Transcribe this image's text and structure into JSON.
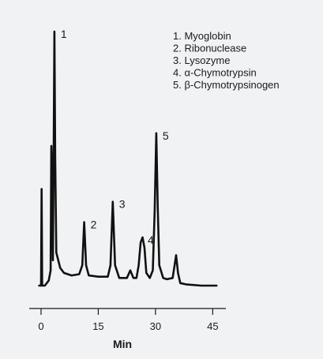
{
  "chart_data": {
    "type": "line",
    "title": "",
    "xlabel": "Min",
    "ylabel": "",
    "xlim": [
      -5,
      48
    ],
    "ylim": [
      0,
      1.0
    ],
    "x_ticks": [
      0,
      15,
      30,
      45
    ],
    "grid": false,
    "legend_position": "top-right",
    "series": [
      {
        "color": "#111111",
        "points": [
          [
            -0.5,
            0.0
          ],
          [
            0.0,
            0.0
          ],
          [
            0.15,
            0.38
          ],
          [
            0.3,
            0.0
          ],
          [
            1.0,
            0.0
          ],
          [
            2.0,
            0.02
          ],
          [
            2.5,
            0.06
          ],
          [
            2.7,
            0.55
          ],
          [
            2.9,
            0.45
          ],
          [
            3.1,
            0.1
          ],
          [
            3.3,
            0.5
          ],
          [
            3.5,
            1.0
          ],
          [
            3.7,
            0.5
          ],
          [
            4.0,
            0.13
          ],
          [
            5.0,
            0.07
          ],
          [
            6.0,
            0.05
          ],
          [
            8.0,
            0.04
          ],
          [
            10.0,
            0.045
          ],
          [
            10.8,
            0.08
          ],
          [
            11.3,
            0.25
          ],
          [
            11.8,
            0.08
          ],
          [
            12.5,
            0.04
          ],
          [
            15.0,
            0.035
          ],
          [
            17.5,
            0.035
          ],
          [
            18.2,
            0.08
          ],
          [
            18.8,
            0.33
          ],
          [
            19.4,
            0.08
          ],
          [
            20.5,
            0.03
          ],
          [
            22.5,
            0.03
          ],
          [
            23.4,
            0.06
          ],
          [
            24.2,
            0.03
          ],
          [
            25.0,
            0.03
          ],
          [
            25.6,
            0.08
          ],
          [
            26.1,
            0.17
          ],
          [
            26.6,
            0.19
          ],
          [
            27.1,
            0.15
          ],
          [
            27.6,
            0.05
          ],
          [
            28.5,
            0.03
          ],
          [
            29.3,
            0.06
          ],
          [
            29.8,
            0.3
          ],
          [
            30.2,
            0.6
          ],
          [
            30.6,
            0.3
          ],
          [
            31.0,
            0.08
          ],
          [
            32.0,
            0.03
          ],
          [
            33.0,
            0.025
          ],
          [
            34.5,
            0.03
          ],
          [
            35.0,
            0.08
          ],
          [
            35.4,
            0.12
          ],
          [
            35.9,
            0.05
          ],
          [
            36.5,
            0.01
          ],
          [
            38.0,
            0.005
          ],
          [
            42.0,
            0.0
          ],
          [
            46.0,
            0.0
          ]
        ]
      }
    ],
    "peak_labels": [
      {
        "text": "1",
        "x": 3.5,
        "y": 1.0
      },
      {
        "text": "2",
        "x": 11.3,
        "y": 0.25
      },
      {
        "text": "3",
        "x": 18.8,
        "y": 0.33
      },
      {
        "text": "4",
        "x": 26.3,
        "y": 0.19
      },
      {
        "text": "5",
        "x": 30.2,
        "y": 0.6
      }
    ],
    "legend": [
      "1. Myoglobin",
      "2. Ribonuclease",
      "3. Lysozyme",
      "4. α-Chymotrypsin",
      "5. β-Chymotrypsinogen"
    ]
  }
}
